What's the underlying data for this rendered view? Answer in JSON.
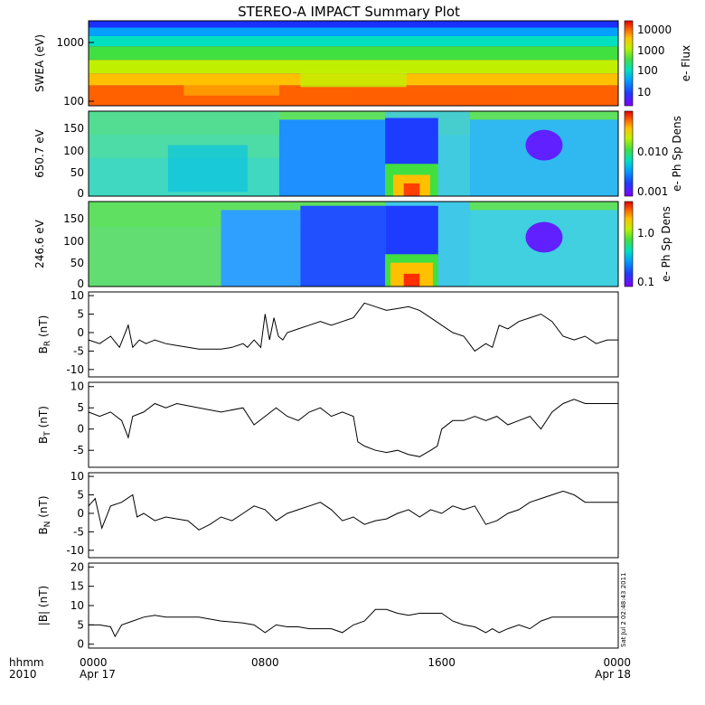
{
  "title": "STEREO-A IMPACT Summary Plot",
  "timestamp": "Sat Jul 2 02:48:43 2011",
  "x_axis": {
    "corner_label_1": "hhmm",
    "corner_label_2": "2010",
    "tick_labels": [
      "0000",
      "0800",
      "1600",
      "0000"
    ],
    "date_labels": [
      "Apr 17",
      "",
      "",
      "Apr 18"
    ]
  },
  "colors": {
    "background": "#ffffff",
    "line": "#000000",
    "spectrogram_scale": [
      "#8000ff",
      "#1e3cff",
      "#00a0ff",
      "#00e0c0",
      "#40e040",
      "#c0f000",
      "#ffc000",
      "#ff6000",
      "#e00000"
    ]
  },
  "chart_data": [
    {
      "type": "heatmap",
      "ylabel": "SWEA (eV)",
      "yscale": "log",
      "ylim": [
        90,
        2000
      ],
      "yticks": [
        "100",
        "1000"
      ],
      "colorbar": {
        "label": "e- Flux",
        "scale": "log",
        "ticks": [
          "10000",
          "1000",
          "100",
          "10"
        ],
        "range": [
          3,
          20000
        ]
      }
    },
    {
      "type": "heatmap",
      "ylabel": "650.7 eV",
      "ylim": [
        -5,
        180
      ],
      "yticks": [
        "0",
        "50",
        "100",
        "150"
      ],
      "colorbar": {
        "label": "e- Ph Sp Dens",
        "scale": "log",
        "ticks": [
          "0.010",
          "0.001"
        ],
        "range": [
          0.001,
          0.04
        ]
      }
    },
    {
      "type": "heatmap",
      "ylabel": "246.6 eV",
      "ylim": [
        -5,
        180
      ],
      "yticks": [
        "0",
        "50",
        "100",
        "150"
      ],
      "colorbar": {
        "label": "e- Ph Sp Dens",
        "scale": "log",
        "ticks": [
          "1.0",
          "0.1"
        ],
        "range": [
          0.08,
          3
        ]
      }
    },
    {
      "type": "line",
      "ylabel_main": "B",
      "ylabel_sub": "R",
      "ylabel_unit": " (nT)",
      "ylim": [
        -12,
        11
      ],
      "yticks": [
        "10",
        "5",
        "0",
        "-5",
        "-10"
      ],
      "x_hours": [
        0,
        0.5,
        1,
        1.4,
        1.8,
        2,
        2.3,
        2.6,
        3,
        3.5,
        4,
        5,
        6,
        6.5,
        7,
        7.2,
        7.5,
        7.8,
        8,
        8.2,
        8.4,
        8.6,
        8.8,
        9,
        9.5,
        10,
        10.5,
        11,
        11.5,
        12,
        12.5,
        13,
        13.5,
        14,
        14.5,
        15,
        15.5,
        16,
        16.5,
        17,
        17.5,
        18,
        18.3,
        18.6,
        19,
        19.5,
        20,
        20.5,
        21,
        21.5,
        22,
        22.5,
        23,
        23.5,
        24
      ],
      "y": [
        -2,
        -3,
        -1,
        -4,
        2,
        -4,
        -2,
        -3,
        -2,
        -3,
        -3.5,
        -4.5,
        -4.5,
        -4,
        -3,
        -4,
        -2,
        -4,
        5,
        -2,
        4,
        -1,
        -2,
        0,
        1,
        2,
        3,
        2,
        3,
        4,
        8,
        7,
        6,
        6.5,
        7,
        6,
        4,
        2,
        0,
        -1,
        -5,
        -3,
        -4,
        2,
        1,
        3,
        4,
        5,
        3,
        -1,
        -2,
        -1,
        -3,
        -2,
        -2
      ]
    },
    {
      "type": "line",
      "ylabel_main": "B",
      "ylabel_sub": "T",
      "ylabel_unit": " (nT)",
      "ylim": [
        -9,
        11
      ],
      "yticks": [
        "10",
        "5",
        "0",
        "-5"
      ],
      "x_hours": [
        0,
        0.5,
        1,
        1.5,
        1.8,
        2,
        2.5,
        3,
        3.5,
        4,
        5,
        6,
        7,
        7.5,
        8,
        8.5,
        9,
        9.5,
        10,
        10.5,
        11,
        11.5,
        12,
        12.2,
        12.5,
        13,
        13.5,
        14,
        14.5,
        15,
        15.5,
        15.8,
        16,
        16.5,
        17,
        17.5,
        18,
        18.5,
        19,
        19.5,
        20,
        20.5,
        21,
        21.5,
        22,
        22.5,
        23,
        23.5,
        24
      ],
      "y": [
        4,
        3,
        4,
        2,
        -2,
        3,
        4,
        6,
        5,
        6,
        5,
        4,
        5,
        1,
        3,
        5,
        3,
        2,
        4,
        5,
        3,
        4,
        3,
        -3,
        -4,
        -5,
        -5.5,
        -5,
        -6,
        -6.5,
        -5,
        -4,
        0,
        2,
        2,
        3,
        2,
        3,
        1,
        2,
        3,
        0,
        4,
        6,
        7,
        6,
        6,
        6,
        6
      ]
    },
    {
      "type": "line",
      "ylabel_main": "B",
      "ylabel_sub": "N",
      "ylabel_unit": " (nT)",
      "ylim": [
        -12,
        11
      ],
      "yticks": [
        "10",
        "5",
        "0",
        "-5",
        "-10"
      ],
      "x_hours": [
        0,
        0.3,
        0.6,
        1,
        1.5,
        2,
        2.2,
        2.5,
        3,
        3.5,
        4,
        4.5,
        5,
        5.5,
        6,
        6.5,
        7,
        7.5,
        8,
        8.5,
        9,
        9.5,
        10,
        10.5,
        11,
        11.5,
        12,
        12.5,
        13,
        13.5,
        14,
        14.5,
        15,
        15.5,
        16,
        16.5,
        17,
        17.5,
        18,
        18.5,
        19,
        19.5,
        20,
        20.5,
        21,
        21.5,
        22,
        22.5,
        23,
        23.5,
        24
      ],
      "y": [
        2,
        4,
        -4,
        2,
        3,
        5,
        -1,
        0,
        -2,
        -1,
        -1.5,
        -2,
        -4.5,
        -3,
        -1,
        -2,
        0,
        2,
        1,
        -2,
        0,
        1,
        2,
        3,
        1,
        -2,
        -1,
        -3,
        -2,
        -1.5,
        0,
        1,
        -1,
        1,
        0,
        2,
        1,
        2,
        -3,
        -2,
        0,
        1,
        3,
        4,
        5,
        6,
        5,
        3,
        3,
        3,
        3
      ]
    },
    {
      "type": "line",
      "ylabel": "|B| (nT)",
      "ylim": [
        -1,
        21
      ],
      "yticks": [
        "20",
        "15",
        "10",
        "5",
        "0"
      ],
      "x_hours": [
        0,
        0.5,
        1,
        1.2,
        1.5,
        2,
        2.5,
        3,
        3.5,
        4,
        5,
        6,
        7,
        7.5,
        8,
        8.5,
        9,
        9.5,
        10,
        10.5,
        11,
        11.5,
        12,
        12.5,
        13,
        13.5,
        14,
        14.5,
        15,
        15.5,
        16,
        16.5,
        17,
        17.5,
        18,
        18.3,
        18.6,
        19,
        19.5,
        20,
        20.5,
        21,
        21.5,
        22,
        22.5,
        23,
        23.5,
        24
      ],
      "y": [
        5,
        5,
        4.5,
        2,
        5,
        6,
        7,
        7.5,
        7,
        7,
        7,
        6,
        5.5,
        5,
        3,
        5,
        4.5,
        4.5,
        4,
        4,
        4,
        3,
        5,
        6,
        9,
        9,
        8,
        7.5,
        8,
        8,
        8,
        6,
        5,
        4.5,
        3,
        4,
        3,
        4,
        5,
        4,
        6,
        7,
        7,
        7,
        7,
        7,
        7,
        7
      ]
    }
  ]
}
